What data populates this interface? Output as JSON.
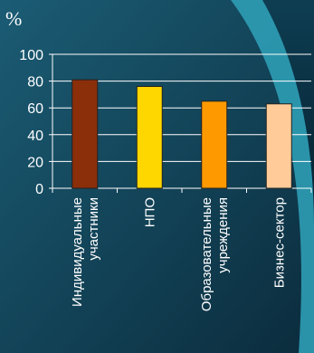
{
  "chart_data": {
    "type": "bar",
    "unit_label": "%",
    "categories": [
      [
        "Индивидуальные",
        "участники"
      ],
      [
        "НПО"
      ],
      [
        "Образовательные",
        "учреждения"
      ],
      [
        "Бизнес-сектор"
      ]
    ],
    "values": [
      81,
      76,
      65,
      63
    ],
    "bar_colors": [
      "#8b2e0a",
      "#ffd700",
      "#ff9900",
      "#ffcc99"
    ],
    "ylim": [
      0,
      100
    ],
    "yticks": [
      0,
      20,
      40,
      60,
      80,
      100
    ],
    "grid": true
  }
}
